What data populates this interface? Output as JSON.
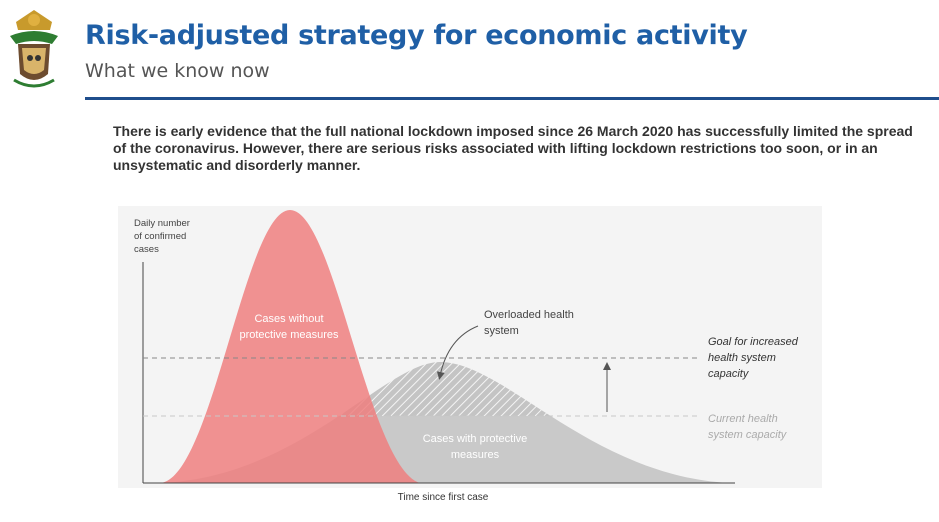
{
  "header": {
    "title": "Risk-adjusted strategy for economic activity",
    "subtitle": "What we know now"
  },
  "body": "There is early evidence that the full national lockdown imposed since 26 March 2020 has successfully limited the spread of the coronavirus. However, there are serious risks associated with lifting lockdown restrictions too soon, or in an unsystematic and disorderly manner.",
  "diagram": {
    "y_axis_label": [
      "Daily number",
      "of confirmed",
      "cases"
    ],
    "x_axis_label": "Time since first case",
    "unprotected_label": [
      "Cases without",
      "protective measures"
    ],
    "overloaded_label": [
      "Overloaded health",
      "system"
    ],
    "goal_label": [
      "Goal for increased",
      "health system",
      "capacity"
    ],
    "current_label": [
      "Current health",
      "system capacity"
    ],
    "protected_label": [
      "Cases with protective",
      "measures"
    ]
  }
}
